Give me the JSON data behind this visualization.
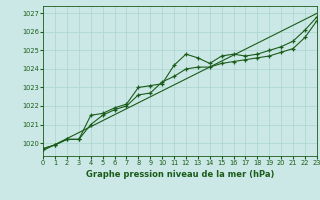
{
  "title": "Graphe pression niveau de la mer (hPa)",
  "bg_color": "#cce8e6",
  "grid_color": "#aad4d0",
  "line_color": "#1a5c1a",
  "xlim": [
    0,
    23
  ],
  "ylim": [
    1019.3,
    1027.4
  ],
  "xtick_vals": [
    0,
    1,
    2,
    3,
    4,
    5,
    6,
    7,
    8,
    9,
    10,
    11,
    12,
    13,
    14,
    15,
    16,
    17,
    18,
    19,
    20,
    21,
    22,
    23
  ],
  "ytick_vals": [
    1020,
    1021,
    1022,
    1023,
    1024,
    1025,
    1026,
    1027
  ],
  "line1_y": [
    1019.7,
    1019.9,
    1020.2,
    1020.2,
    1021.5,
    1021.6,
    1021.9,
    1022.1,
    1023.0,
    1023.1,
    1023.2,
    1024.2,
    1024.8,
    1024.6,
    1024.3,
    1024.7,
    1024.8,
    1024.7,
    1024.8,
    1025.0,
    1025.2,
    1025.5,
    1026.1,
    1026.8
  ],
  "line2_y": [
    1019.7,
    1019.9,
    1020.2,
    1020.2,
    1021.0,
    1021.5,
    1021.8,
    1022.0,
    1022.6,
    1022.7,
    1023.3,
    1023.6,
    1024.0,
    1024.1,
    1024.1,
    1024.3,
    1024.4,
    1024.5,
    1024.6,
    1024.7,
    1024.9,
    1025.1,
    1025.7,
    1026.6
  ],
  "line3_x": [
    0,
    23
  ],
  "line3_y": [
    1019.6,
    1027.0
  ]
}
